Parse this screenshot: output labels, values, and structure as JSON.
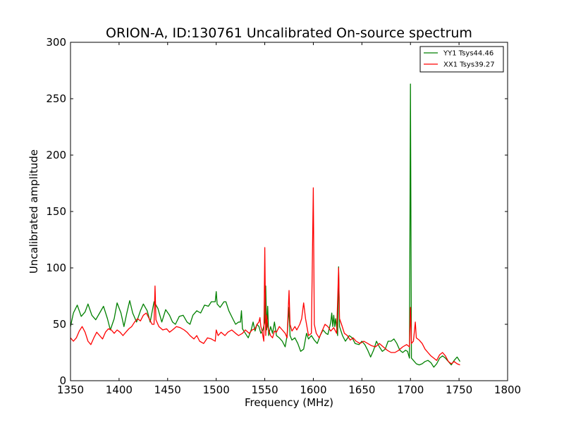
{
  "chart_data": {
    "type": "line",
    "title": "ORION-A, ID:130761 Uncalibrated On-source spectrum",
    "xlabel": "Frequency (MHz)",
    "ylabel": "Uncalibrated amplitude",
    "xlim": [
      1350,
      1800
    ],
    "ylim": [
      0,
      300
    ],
    "xticks": [
      1350,
      1400,
      1450,
      1500,
      1550,
      1600,
      1650,
      1700,
      1750,
      1800
    ],
    "yticks": [
      0,
      50,
      100,
      150,
      200,
      250,
      300
    ],
    "grid": false,
    "legend": "top-right",
    "series": [
      {
        "name": "YY1 Tsys44.46",
        "color": "#008000",
        "points": [
          [
            1350,
            48
          ],
          [
            1353,
            60
          ],
          [
            1357,
            67
          ],
          [
            1361,
            57
          ],
          [
            1365,
            61
          ],
          [
            1368,
            68
          ],
          [
            1372,
            58
          ],
          [
            1376,
            54
          ],
          [
            1380,
            60
          ],
          [
            1384,
            66
          ],
          [
            1388,
            55
          ],
          [
            1391,
            45
          ],
          [
            1395,
            55
          ],
          [
            1398,
            69
          ],
          [
            1402,
            60
          ],
          [
            1405,
            48
          ],
          [
            1408,
            60
          ],
          [
            1411,
            71
          ],
          [
            1414,
            60
          ],
          [
            1418,
            52
          ],
          [
            1422,
            62
          ],
          [
            1425,
            68
          ],
          [
            1429,
            62
          ],
          [
            1432,
            52
          ],
          [
            1436,
            70
          ],
          [
            1440,
            64
          ],
          [
            1444,
            52
          ],
          [
            1448,
            63
          ],
          [
            1452,
            58
          ],
          [
            1455,
            52
          ],
          [
            1458,
            50
          ],
          [
            1462,
            57
          ],
          [
            1466,
            58
          ],
          [
            1470,
            52
          ],
          [
            1473,
            50
          ],
          [
            1476,
            58
          ],
          [
            1480,
            62
          ],
          [
            1484,
            60
          ],
          [
            1488,
            67
          ],
          [
            1492,
            66
          ],
          [
            1495,
            70
          ],
          [
            1499,
            70
          ],
          [
            1500,
            79
          ],
          [
            1501,
            68
          ],
          [
            1504,
            65
          ],
          [
            1508,
            70
          ],
          [
            1510,
            70
          ],
          [
            1513,
            62
          ],
          [
            1517,
            55
          ],
          [
            1520,
            50
          ],
          [
            1523,
            52
          ],
          [
            1525,
            52
          ],
          [
            1526,
            62
          ],
          [
            1527,
            46
          ],
          [
            1530,
            42
          ],
          [
            1533,
            38
          ],
          [
            1536,
            45
          ],
          [
            1538,
            52
          ],
          [
            1540,
            44
          ],
          [
            1542,
            50
          ],
          [
            1544,
            48
          ],
          [
            1546,
            42
          ],
          [
            1548,
            45
          ],
          [
            1550,
            52
          ],
          [
            1551,
            84
          ],
          [
            1552,
            45
          ],
          [
            1553,
            66
          ],
          [
            1554,
            40
          ],
          [
            1556,
            48
          ],
          [
            1558,
            42
          ],
          [
            1560,
            52
          ],
          [
            1562,
            40
          ],
          [
            1565,
            38
          ],
          [
            1568,
            35
          ],
          [
            1571,
            30
          ],
          [
            1573,
            40
          ],
          [
            1575,
            65
          ],
          [
            1576,
            40
          ],
          [
            1578,
            36
          ],
          [
            1581,
            38
          ],
          [
            1584,
            33
          ],
          [
            1587,
            26
          ],
          [
            1590,
            28
          ],
          [
            1593,
            42
          ],
          [
            1595,
            37
          ],
          [
            1598,
            40
          ],
          [
            1601,
            36
          ],
          [
            1604,
            33
          ],
          [
            1607,
            40
          ],
          [
            1610,
            45
          ],
          [
            1613,
            42
          ],
          [
            1615,
            41
          ],
          [
            1618,
            52
          ],
          [
            1619,
            60
          ],
          [
            1620,
            48
          ],
          [
            1621,
            58
          ],
          [
            1622,
            48
          ],
          [
            1623,
            55
          ],
          [
            1625,
            40
          ],
          [
            1626,
            101
          ],
          [
            1627,
            48
          ],
          [
            1630,
            40
          ],
          [
            1633,
            35
          ],
          [
            1637,
            40
          ],
          [
            1640,
            38
          ],
          [
            1643,
            33
          ],
          [
            1647,
            32
          ],
          [
            1650,
            35
          ],
          [
            1653,
            32
          ],
          [
            1656,
            27
          ],
          [
            1659,
            21
          ],
          [
            1662,
            27
          ],
          [
            1665,
            35
          ],
          [
            1668,
            30
          ],
          [
            1671,
            26
          ],
          [
            1674,
            28
          ],
          [
            1677,
            35
          ],
          [
            1680,
            35
          ],
          [
            1683,
            37
          ],
          [
            1686,
            33
          ],
          [
            1689,
            27
          ],
          [
            1692,
            25
          ],
          [
            1695,
            27
          ],
          [
            1697,
            26
          ],
          [
            1699,
            20
          ],
          [
            1700,
            263
          ],
          [
            1701,
            20
          ],
          [
            1703,
            18
          ],
          [
            1706,
            15
          ],
          [
            1709,
            14
          ],
          [
            1712,
            15
          ],
          [
            1715,
            17
          ],
          [
            1718,
            18
          ],
          [
            1721,
            16
          ],
          [
            1724,
            12
          ],
          [
            1727,
            15
          ],
          [
            1730,
            20
          ],
          [
            1733,
            22
          ],
          [
            1736,
            20
          ],
          [
            1739,
            17
          ],
          [
            1742,
            14
          ],
          [
            1745,
            18
          ],
          [
            1748,
            21
          ],
          [
            1751,
            17
          ]
        ]
      },
      {
        "name": "XX1 Tsys39.27",
        "color": "#ff0000",
        "points": [
          [
            1350,
            38
          ],
          [
            1353,
            35
          ],
          [
            1356,
            38
          ],
          [
            1359,
            44
          ],
          [
            1362,
            48
          ],
          [
            1365,
            43
          ],
          [
            1368,
            35
          ],
          [
            1371,
            32
          ],
          [
            1374,
            38
          ],
          [
            1377,
            43
          ],
          [
            1380,
            40
          ],
          [
            1383,
            37
          ],
          [
            1386,
            43
          ],
          [
            1389,
            46
          ],
          [
            1392,
            45
          ],
          [
            1395,
            42
          ],
          [
            1398,
            45
          ],
          [
            1401,
            43
          ],
          [
            1404,
            40
          ],
          [
            1407,
            43
          ],
          [
            1410,
            46
          ],
          [
            1413,
            48
          ],
          [
            1416,
            52
          ],
          [
            1419,
            55
          ],
          [
            1422,
            53
          ],
          [
            1425,
            58
          ],
          [
            1428,
            60
          ],
          [
            1431,
            55
          ],
          [
            1434,
            50
          ],
          [
            1436,
            50
          ],
          [
            1437,
            84
          ],
          [
            1438,
            54
          ],
          [
            1441,
            48
          ],
          [
            1445,
            45
          ],
          [
            1449,
            46
          ],
          [
            1452,
            43
          ],
          [
            1455,
            45
          ],
          [
            1459,
            48
          ],
          [
            1463,
            47
          ],
          [
            1467,
            45
          ],
          [
            1470,
            43
          ],
          [
            1473,
            40
          ],
          [
            1477,
            37
          ],
          [
            1480,
            40
          ],
          [
            1483,
            35
          ],
          [
            1487,
            33
          ],
          [
            1491,
            38
          ],
          [
            1495,
            37
          ],
          [
            1499,
            35
          ],
          [
            1500,
            45
          ],
          [
            1502,
            40
          ],
          [
            1505,
            43
          ],
          [
            1509,
            40
          ],
          [
            1512,
            43
          ],
          [
            1516,
            45
          ],
          [
            1520,
            42
          ],
          [
            1523,
            40
          ],
          [
            1527,
            42
          ],
          [
            1530,
            45
          ],
          [
            1534,
            42
          ],
          [
            1537,
            45
          ],
          [
            1540,
            46
          ],
          [
            1542,
            50
          ],
          [
            1544,
            52
          ],
          [
            1545,
            56
          ],
          [
            1546,
            48
          ],
          [
            1547,
            45
          ],
          [
            1548,
            40
          ],
          [
            1549,
            35
          ],
          [
            1550,
            118
          ],
          [
            1551,
            40
          ],
          [
            1552,
            58
          ],
          [
            1553,
            48
          ],
          [
            1554,
            45
          ],
          [
            1556,
            40
          ],
          [
            1558,
            38
          ],
          [
            1560,
            44
          ],
          [
            1562,
            43
          ],
          [
            1565,
            48
          ],
          [
            1568,
            45
          ],
          [
            1571,
            42
          ],
          [
            1573,
            38
          ],
          [
            1575,
            80
          ],
          [
            1576,
            50
          ],
          [
            1578,
            44
          ],
          [
            1581,
            48
          ],
          [
            1583,
            45
          ],
          [
            1586,
            50
          ],
          [
            1588,
            55
          ],
          [
            1590,
            69
          ],
          [
            1592,
            55
          ],
          [
            1595,
            40
          ],
          [
            1598,
            42
          ],
          [
            1600,
            171
          ],
          [
            1601,
            50
          ],
          [
            1603,
            42
          ],
          [
            1606,
            38
          ],
          [
            1609,
            44
          ],
          [
            1612,
            50
          ],
          [
            1615,
            48
          ],
          [
            1618,
            44
          ],
          [
            1621,
            47
          ],
          [
            1624,
            42
          ],
          [
            1626,
            100
          ],
          [
            1627,
            55
          ],
          [
            1629,
            50
          ],
          [
            1632,
            42
          ],
          [
            1635,
            40
          ],
          [
            1638,
            36
          ],
          [
            1641,
            38
          ],
          [
            1644,
            35
          ],
          [
            1648,
            33
          ],
          [
            1652,
            35
          ],
          [
            1656,
            33
          ],
          [
            1660,
            31
          ],
          [
            1664,
            30
          ],
          [
            1668,
            33
          ],
          [
            1672,
            30
          ],
          [
            1676,
            27
          ],
          [
            1680,
            25
          ],
          [
            1684,
            25
          ],
          [
            1688,
            27
          ],
          [
            1692,
            30
          ],
          [
            1696,
            32
          ],
          [
            1699,
            30
          ],
          [
            1700,
            65
          ],
          [
            1701,
            33
          ],
          [
            1703,
            35
          ],
          [
            1705,
            52
          ],
          [
            1706,
            38
          ],
          [
            1709,
            36
          ],
          [
            1712,
            33
          ],
          [
            1715,
            28
          ],
          [
            1718,
            25
          ],
          [
            1721,
            22
          ],
          [
            1724,
            20
          ],
          [
            1727,
            18
          ],
          [
            1730,
            23
          ],
          [
            1733,
            25
          ],
          [
            1736,
            22
          ],
          [
            1739,
            17
          ],
          [
            1742,
            15
          ],
          [
            1745,
            17
          ],
          [
            1748,
            15
          ],
          [
            1751,
            14
          ]
        ]
      }
    ]
  }
}
